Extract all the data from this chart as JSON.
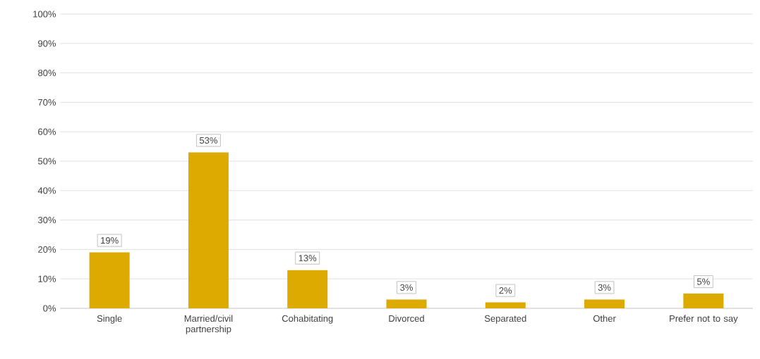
{
  "chart_data": {
    "type": "bar",
    "categories": [
      "Single",
      "Married/civil partnership",
      "Cohabitating",
      "Divorced",
      "Separated",
      "Other",
      "Prefer not to say"
    ],
    "values": [
      19,
      53,
      13,
      3,
      2,
      3,
      5
    ],
    "value_labels": [
      "19%",
      "53%",
      "13%",
      "3%",
      "2%",
      "3%",
      "5%"
    ],
    "color": "#dcaa00",
    "ylim": [
      0,
      100
    ],
    "yticks": [
      {
        "value": 0,
        "label": "0%"
      },
      {
        "value": 10,
        "label": "10%"
      },
      {
        "value": 20,
        "label": "20%"
      },
      {
        "value": 30,
        "label": "30%"
      },
      {
        "value": 40,
        "label": "40%"
      },
      {
        "value": 50,
        "label": "50%"
      },
      {
        "value": 60,
        "label": "60%"
      },
      {
        "value": 70,
        "label": "70%"
      },
      {
        "value": 80,
        "label": "80%"
      },
      {
        "value": 90,
        "label": "90%"
      },
      {
        "value": 100,
        "label": "100%"
      }
    ],
    "grid": "y"
  }
}
